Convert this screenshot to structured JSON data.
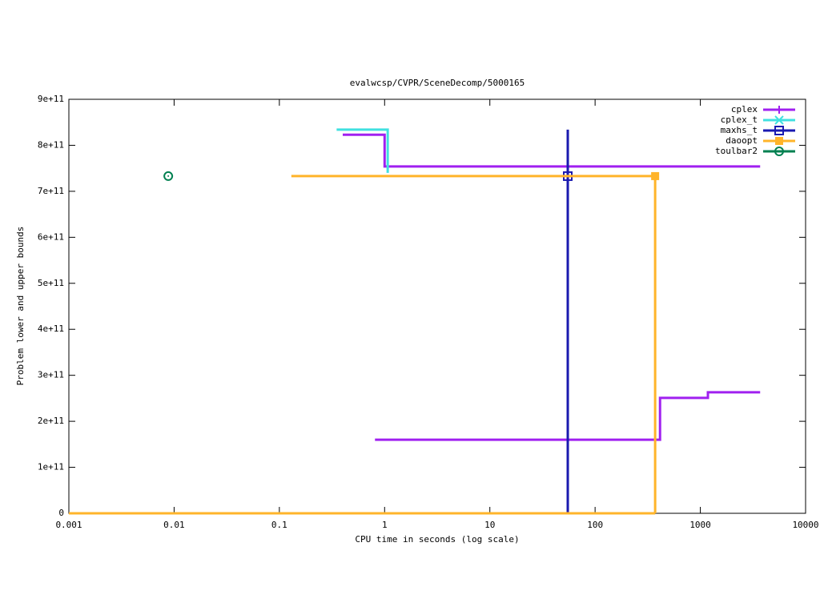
{
  "chart_data": {
    "type": "step",
    "title": "evalwcsp/CVPR/SceneDecomp/5000165",
    "xlabel": "CPU time in seconds (log scale)",
    "ylabel": "Problem lower and upper bounds",
    "xscale": "log",
    "xlim": [
      0.001,
      10000
    ],
    "xticks": [
      0.001,
      0.01,
      0.1,
      1,
      10,
      100,
      1000,
      10000
    ],
    "ylim": [
      0,
      900000000000
    ],
    "yticks": [
      0,
      {
        "value": 100000000000,
        "label": "1e+11"
      },
      {
        "value": 200000000000,
        "label": "2e+11"
      },
      {
        "value": 300000000000,
        "label": "3e+11"
      },
      {
        "value": 400000000000,
        "label": "4e+11"
      },
      {
        "value": 500000000000,
        "label": "5e+11"
      },
      {
        "value": 600000000000,
        "label": "6e+11"
      },
      {
        "value": 700000000000,
        "label": "7e+11"
      },
      {
        "value": 800000000000,
        "label": "8e+11"
      },
      {
        "value": 900000000000,
        "label": "9e+11"
      }
    ],
    "legend": "upper-right",
    "series": [
      {
        "name": "cplex",
        "color": "#a020f0",
        "marker": "plus",
        "x": [
          0.4,
          1.0,
          3700,
          null,
          0.81,
          414,
          1180,
          3700
        ],
        "values": [
          823000000000,
          754000000000,
          754000000000,
          null,
          160000000000,
          251000000000,
          263000000000,
          263000000000
        ],
        "markers": {
          "x": [],
          "values": []
        }
      },
      {
        "name": "cplex_t",
        "color": "#40e0e0",
        "marker": "cross",
        "x": [
          0.35,
          1.07
        ],
        "values": [
          834000000000,
          740000000000
        ],
        "markers": {
          "x": [],
          "values": []
        }
      },
      {
        "name": "maxhs_t",
        "color": "#1a1ab0",
        "marker": "square",
        "x": [
          55,
          55
        ],
        "values": [
          0,
          834000000000
        ],
        "markers": {
          "x": [
            55
          ],
          "values": [
            733000000000
          ]
        }
      },
      {
        "name": "daoopt",
        "color": "#ffb42a",
        "marker": "filled-square",
        "x": [
          0.13,
          372,
          null,
          0.001,
          372
        ],
        "values": [
          733000000000,
          0,
          null,
          0,
          0
        ],
        "markers": {
          "x": [
            372
          ],
          "values": [
            733000000000
          ]
        }
      },
      {
        "name": "toulbar2",
        "color": "#008050",
        "marker": "circle",
        "x": [],
        "values": [],
        "markers": {
          "x": [
            0.0088
          ],
          "values": [
            733000000000
          ]
        }
      }
    ]
  }
}
